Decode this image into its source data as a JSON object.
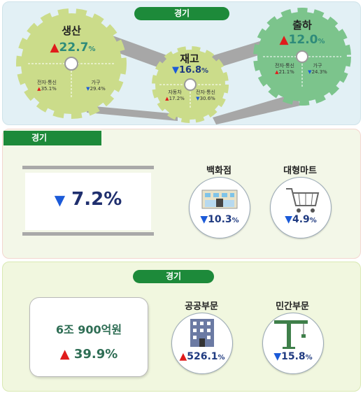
{
  "panel1": {
    "label": "경기",
    "production": {
      "title": "생산",
      "value": "22.7",
      "unit": "%",
      "sub1_label": "전자·통신",
      "sub1_value": "35.1%",
      "sub2_label": "가구",
      "sub2_value": "29.4%"
    },
    "inventory": {
      "title": "재고",
      "value": "16.8",
      "unit": "%",
      "sub1_label": "자동차",
      "sub1_value": "17.2%",
      "sub2_label": "전자·통신",
      "sub2_value": "30.6%"
    },
    "shipment": {
      "title": "출하",
      "value": "12.0",
      "unit": "%",
      "sub1_label": "전자·통신",
      "sub1_value": "21.1%",
      "sub2_label": "가구",
      "sub2_value": "24.3%"
    }
  },
  "panel2": {
    "label": "경기",
    "main_value": "7.2%",
    "dept_store": {
      "label": "백화점",
      "value": "10.3",
      "unit": "%"
    },
    "mart": {
      "label": "대형마트",
      "value": "4.9",
      "unit": "%"
    }
  },
  "panel3": {
    "label": "경기",
    "amount": "6조 900억원",
    "amount_change": "39.9%",
    "public": {
      "label": "공공부문",
      "value": "526.1",
      "unit": "%"
    },
    "private": {
      "label": "민간부문",
      "value": "15.8",
      "unit": "%"
    }
  },
  "colors": {
    "green_label": "#1d8a3a",
    "up": "#e01b1b",
    "down": "#1b5ad8"
  }
}
